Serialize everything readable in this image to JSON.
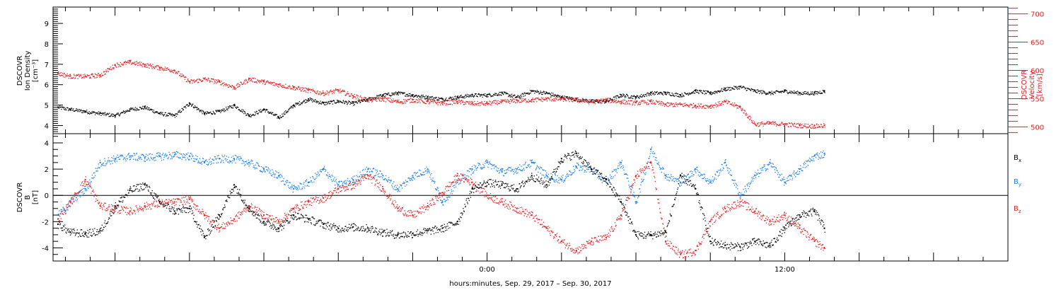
{
  "chart_data": [
    {
      "type": "scatter",
      "panel": "plasma",
      "ylabel_left": [
        "DSCOVR",
        "Ion Density",
        "[cm⁻³]"
      ],
      "ylabel_right": [
        "DSCOVR",
        "Velocity",
        "[km/s]"
      ],
      "left_axis": {
        "ylim": [
          3.6,
          9.8
        ],
        "ticks": [
          4,
          5,
          6,
          7,
          8,
          9
        ],
        "color": "#000000"
      },
      "right_axis": {
        "ylim": [
          488,
          712
        ],
        "ticks": [
          500,
          550,
          600,
          650,
          700
        ],
        "color": "#e02020"
      },
      "x_hours": [
        -17.5,
        21
      ],
      "series": [
        {
          "axis": "left",
          "color": "#000000",
          "x": [
            -17.3,
            -16.8,
            -16.2,
            -15.6,
            -15.0,
            -14.4,
            -13.8,
            -13.2,
            -12.6,
            -12.0,
            -11.4,
            -10.8,
            -10.2,
            -9.6,
            -9.0,
            -8.4,
            -7.8,
            -7.2,
            -6.6,
            -6.0,
            -5.4,
            -4.8,
            -4.2,
            -3.6,
            -3.0,
            -2.4,
            -1.8,
            -1.2,
            -0.6,
            0.0,
            0.6,
            1.2,
            1.8,
            2.4,
            3.0,
            3.6,
            4.2,
            4.8,
            5.4,
            6.0,
            6.6,
            7.2,
            7.8,
            8.4,
            9.0,
            9.6,
            10.2,
            10.8,
            11.4,
            12.0,
            12.6,
            13.2,
            13.6
          ],
          "y": [
            4.9,
            4.8,
            4.7,
            4.6,
            4.5,
            4.8,
            4.9,
            4.6,
            4.5,
            5.1,
            4.6,
            4.7,
            5.0,
            4.5,
            4.8,
            4.4,
            5.0,
            5.3,
            5.1,
            5.2,
            5.1,
            5.3,
            5.5,
            5.6,
            5.5,
            5.4,
            5.3,
            5.4,
            5.5,
            5.5,
            5.6,
            5.4,
            5.7,
            5.6,
            5.4,
            5.3,
            5.2,
            5.2,
            5.5,
            5.4,
            5.6,
            5.6,
            5.5,
            5.7,
            5.6,
            5.8,
            5.9,
            5.7,
            5.6,
            5.7,
            5.6,
            5.6,
            5.7
          ]
        },
        {
          "axis": "right",
          "color": "#e02020",
          "x": [
            -17.3,
            -16.8,
            -16.2,
            -15.6,
            -15.0,
            -14.4,
            -13.8,
            -13.2,
            -12.6,
            -12.0,
            -11.4,
            -10.8,
            -10.2,
            -9.6,
            -9.0,
            -8.4,
            -7.8,
            -7.2,
            -6.6,
            -6.0,
            -5.4,
            -4.8,
            -4.2,
            -3.6,
            -3.0,
            -2.4,
            -1.8,
            -1.2,
            -0.6,
            0.0,
            0.6,
            1.2,
            1.8,
            2.4,
            3.0,
            3.6,
            4.2,
            4.8,
            5.4,
            6.0,
            6.6,
            7.2,
            7.8,
            8.4,
            9.0,
            9.6,
            10.2,
            10.8,
            11.4,
            12.0,
            12.6,
            13.2,
            13.6
          ],
          "y": [
            595,
            590,
            590,
            592,
            610,
            615,
            610,
            605,
            600,
            580,
            585,
            580,
            570,
            585,
            580,
            575,
            570,
            565,
            560,
            565,
            555,
            548,
            550,
            545,
            548,
            545,
            543,
            545,
            542,
            542,
            545,
            547,
            548,
            550,
            550,
            548,
            545,
            548,
            545,
            543,
            545,
            540,
            540,
            538,
            537,
            545,
            535,
            505,
            507,
            505,
            503,
            502,
            503
          ]
        }
      ]
    },
    {
      "type": "scatter",
      "panel": "magnetic",
      "ylabel": [
        "DSCOVR",
        "B",
        "[nT]"
      ],
      "ylim": [
        -5,
        4.7
      ],
      "yticks": [
        -4,
        -2,
        0,
        2,
        4
      ],
      "x_hours": [
        -17.5,
        21
      ],
      "xticks": [
        0,
        12
      ],
      "xticklabels": [
        "0:00",
        "12:00"
      ],
      "xlabel": "hours:minutes, Sep. 29, 2017 – Sep. 30, 2017",
      "legend": [
        "B",
        "B",
        "B"
      ],
      "legend_subscripts": [
        "x",
        "y",
        "z"
      ],
      "series": [
        {
          "name": "Bx",
          "color": "#000000",
          "x": [
            -17.3,
            -16.8,
            -16.2,
            -15.6,
            -15.0,
            -14.4,
            -13.8,
            -13.2,
            -12.6,
            -12.0,
            -11.4,
            -10.8,
            -10.2,
            -9.6,
            -9.0,
            -8.4,
            -7.8,
            -7.2,
            -6.6,
            -6.0,
            -5.4,
            -4.8,
            -4.2,
            -3.6,
            -3.0,
            -2.4,
            -1.8,
            -1.2,
            -0.6,
            0.0,
            0.6,
            1.2,
            1.8,
            2.4,
            3.0,
            3.6,
            4.2,
            4.8,
            5.4,
            6.0,
            6.6,
            7.2,
            7.8,
            8.4,
            9.0,
            9.6,
            10.2,
            10.8,
            11.4,
            12.0,
            12.6,
            13.2,
            13.6
          ],
          "y": [
            -2.2,
            -2.8,
            -2.9,
            -2.7,
            -0.8,
            0.4,
            0.8,
            -0.5,
            -1.2,
            -1.0,
            -3.2,
            -1.5,
            0.8,
            -1.0,
            -2.0,
            -2.5,
            -1.5,
            -1.8,
            -2.2,
            -2.5,
            -2.4,
            -2.5,
            -2.8,
            -3.0,
            -2.9,
            -2.7,
            -2.5,
            -2.0,
            0.5,
            1.0,
            0.8,
            0.5,
            1.5,
            0.8,
            2.8,
            3.2,
            2.0,
            1.2,
            -0.5,
            -3.0,
            -3.0,
            -2.8,
            1.5,
            0.5,
            -3.5,
            -3.8,
            -3.9,
            -3.5,
            -3.8,
            -2.5,
            -1.5,
            -1.2,
            -2.5
          ]
        },
        {
          "name": "By",
          "color": "#1a7ee0",
          "x": [
            -17.3,
            -16.8,
            -16.2,
            -15.6,
            -15.0,
            -14.4,
            -13.8,
            -13.2,
            -12.6,
            -12.0,
            -11.4,
            -10.8,
            -10.2,
            -9.6,
            -9.0,
            -8.4,
            -7.8,
            -7.2,
            -6.6,
            -6.0,
            -5.4,
            -4.8,
            -4.2,
            -3.6,
            -3.0,
            -2.4,
            -1.8,
            -1.2,
            -0.6,
            0.0,
            0.6,
            1.2,
            1.8,
            2.4,
            3.0,
            3.6,
            4.2,
            4.8,
            5.4,
            6.0,
            6.6,
            7.2,
            7.8,
            8.4,
            9.0,
            9.6,
            10.2,
            10.8,
            11.4,
            12.0,
            12.6,
            13.2,
            13.6
          ],
          "y": [
            -1.5,
            -0.5,
            0.5,
            2.5,
            2.8,
            3.0,
            2.9,
            3.0,
            3.1,
            3.0,
            2.5,
            2.8,
            2.8,
            2.5,
            2.0,
            1.5,
            0.5,
            1.0,
            2.0,
            0.8,
            1.2,
            2.0,
            1.5,
            0.5,
            1.5,
            2.0,
            -0.5,
            1.0,
            2.0,
            2.5,
            1.8,
            2.0,
            2.5,
            1.5,
            1.2,
            2.2,
            2.0,
            1.0,
            2.5,
            -0.5,
            3.5,
            1.5,
            1.0,
            2.0,
            1.0,
            2.5,
            0.0,
            1.5,
            2.5,
            1.0,
            2.0,
            3.0,
            3.2
          ]
        },
        {
          "name": "Bz",
          "color": "#e02020",
          "x": [
            -17.3,
            -16.8,
            -16.2,
            -15.6,
            -15.0,
            -14.4,
            -13.8,
            -13.2,
            -12.6,
            -12.0,
            -11.4,
            -10.8,
            -10.2,
            -9.6,
            -9.0,
            -8.4,
            -7.8,
            -7.2,
            -6.6,
            -6.0,
            -5.4,
            -4.8,
            -4.2,
            -3.6,
            -3.0,
            -2.4,
            -1.8,
            -1.2,
            -0.6,
            0.0,
            0.6,
            1.2,
            1.8,
            2.4,
            3.0,
            3.6,
            4.2,
            4.8,
            5.4,
            6.0,
            6.6,
            7.2,
            7.8,
            8.4,
            9.0,
            9.6,
            10.2,
            10.8,
            11.4,
            12.0,
            12.6,
            13.2,
            13.6
          ],
          "y": [
            -1.8,
            -0.5,
            1.2,
            -0.8,
            -1.0,
            -1.2,
            -0.8,
            -0.6,
            -0.5,
            -0.3,
            -1.5,
            -2.5,
            -1.8,
            -0.8,
            -1.5,
            -2.0,
            -1.0,
            -0.5,
            -0.2,
            0.5,
            0.8,
            1.5,
            0.5,
            -1.0,
            -1.5,
            -0.8,
            0.2,
            1.5,
            1.0,
            0.0,
            -0.5,
            -1.0,
            -1.5,
            -2.5,
            -3.5,
            -4.2,
            -3.5,
            -3.2,
            -1.5,
            1.5,
            2.5,
            -3.5,
            -4.5,
            -4.2,
            -2.0,
            -1.0,
            -0.5,
            -1.2,
            -2.0,
            -1.5,
            -2.5,
            -3.5,
            -4.0
          ]
        }
      ]
    }
  ]
}
